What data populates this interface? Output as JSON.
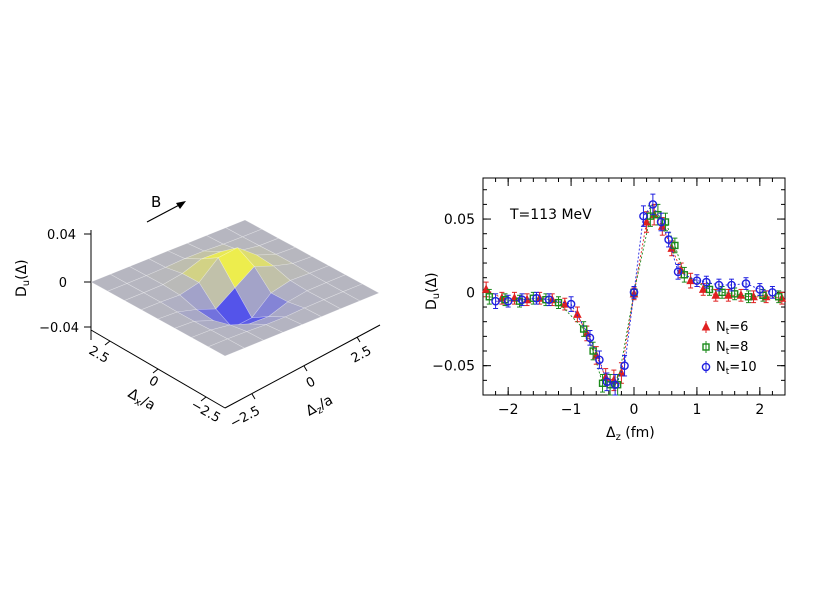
{
  "chart_data": [
    {
      "type": "surface3d",
      "field_arrow_label": "B",
      "z_axis": {
        "label_text": "D",
        "label_sub": "u",
        "label_arg": "(Δ)",
        "ticks": [
          "0.04",
          "0",
          "−0.04"
        ]
      },
      "x_axis": {
        "label_text": "Δ",
        "label_sub": "x",
        "label_suffix": "/a",
        "ticks": [
          "2.5",
          "0",
          "−2.5"
        ]
      },
      "z_in_axis": {
        "label_text": "Δ",
        "label_sub": "z",
        "label_suffix": "/a",
        "ticks": [
          "−2.5",
          "0",
          "2.5"
        ]
      },
      "colors": {
        "negative": "#4646f0",
        "positive": "#f5f53c",
        "neutral": "#b4b4be"
      }
    },
    {
      "type": "scatter",
      "annotation": "T=113 MeV",
      "xlabel_text": "Δ",
      "xlabel_sub": "z",
      "xlabel_suffix": " (fm)",
      "ylabel_text": "D",
      "ylabel_sub": "u",
      "ylabel_arg": "(Δ)",
      "xlim": [
        -2.4,
        2.4
      ],
      "ylim": [
        -0.07,
        0.078
      ],
      "xticks": [
        -2,
        -1,
        0,
        1,
        2
      ],
      "xtick_labels": [
        "−2",
        "−1",
        "0",
        "1",
        "2"
      ],
      "yticks": [
        -0.05,
        0,
        0.05
      ],
      "ytick_labels": [
        "−0.05",
        "0",
        "0.05"
      ],
      "series": [
        {
          "name_main": "N",
          "name_sub": "t",
          "name_value": "=6",
          "marker": "triangle",
          "color": "#e02020",
          "x": [
            -2.35,
            -2.1,
            -1.9,
            -1.7,
            -1.5,
            -1.3,
            -1.1,
            -0.9,
            -0.75,
            -0.6,
            -0.45,
            -0.32,
            -0.2,
            0.0,
            0.2,
            0.32,
            0.45,
            0.6,
            0.75,
            0.9,
            1.1,
            1.3,
            1.5,
            1.7,
            1.9,
            2.1,
            2.35
          ],
          "y": [
            0.002,
            -0.004,
            -0.004,
            -0.005,
            -0.004,
            -0.005,
            -0.008,
            -0.015,
            -0.028,
            -0.043,
            -0.058,
            -0.06,
            -0.055,
            -0.001,
            0.048,
            0.053,
            0.045,
            0.03,
            0.015,
            0.008,
            0.002,
            -0.002,
            -0.002,
            -0.002,
            -0.003,
            -0.003,
            -0.004
          ],
          "err": [
            0.005,
            0.004,
            0.004,
            0.004,
            0.004,
            0.004,
            0.004,
            0.005,
            0.005,
            0.006,
            0.006,
            0.007,
            0.007,
            0.004,
            0.007,
            0.007,
            0.006,
            0.005,
            0.005,
            0.005,
            0.004,
            0.004,
            0.004,
            0.004,
            0.004,
            0.004,
            0.004
          ]
        },
        {
          "name_main": "N",
          "name_sub": "t",
          "name_value": "=8",
          "marker": "square",
          "color": "#1a8a1a",
          "x": [
            -2.3,
            -2.05,
            -1.82,
            -1.6,
            -1.4,
            -1.2,
            -0.8,
            -0.65,
            -0.5,
            -0.38,
            -0.26,
            0.0,
            0.26,
            0.38,
            0.5,
            0.65,
            0.8,
            1.2,
            1.4,
            1.6,
            1.82,
            2.05,
            2.3
          ],
          "y": [
            -0.003,
            -0.005,
            -0.006,
            -0.004,
            -0.005,
            -0.007,
            -0.025,
            -0.04,
            -0.062,
            -0.063,
            -0.063,
            0.0,
            0.052,
            0.053,
            0.048,
            0.032,
            0.012,
            0.002,
            0.0,
            -0.001,
            -0.003,
            -0.002,
            -0.003
          ],
          "err": [
            0.005,
            0.004,
            0.004,
            0.004,
            0.004,
            0.004,
            0.005,
            0.006,
            0.006,
            0.007,
            0.007,
            0.004,
            0.007,
            0.007,
            0.006,
            0.005,
            0.005,
            0.004,
            0.004,
            0.004,
            0.004,
            0.004,
            0.004
          ]
        },
        {
          "name_main": "N",
          "name_sub": "t",
          "name_value": "=10",
          "marker": "circle",
          "color": "#2020e0",
          "x": [
            -2.2,
            -2.0,
            -1.78,
            -1.55,
            -1.35,
            -1.0,
            -0.7,
            -0.55,
            -0.43,
            -0.3,
            -0.15,
            0.0,
            0.15,
            0.3,
            0.43,
            0.55,
            0.7,
            1.0,
            1.15,
            1.35,
            1.55,
            1.78,
            2.0,
            2.2
          ],
          "y": [
            -0.006,
            -0.006,
            -0.005,
            -0.004,
            -0.005,
            -0.008,
            -0.031,
            -0.046,
            -0.061,
            -0.063,
            -0.05,
            0.0,
            0.052,
            0.06,
            0.048,
            0.036,
            0.014,
            0.008,
            0.007,
            0.005,
            0.005,
            0.006,
            0.002,
            0.0
          ],
          "err": [
            0.005,
            0.004,
            0.004,
            0.004,
            0.004,
            0.005,
            0.005,
            0.006,
            0.006,
            0.007,
            0.007,
            0.004,
            0.007,
            0.007,
            0.006,
            0.005,
            0.005,
            0.004,
            0.004,
            0.004,
            0.004,
            0.004,
            0.004,
            0.004
          ]
        }
      ]
    }
  ]
}
